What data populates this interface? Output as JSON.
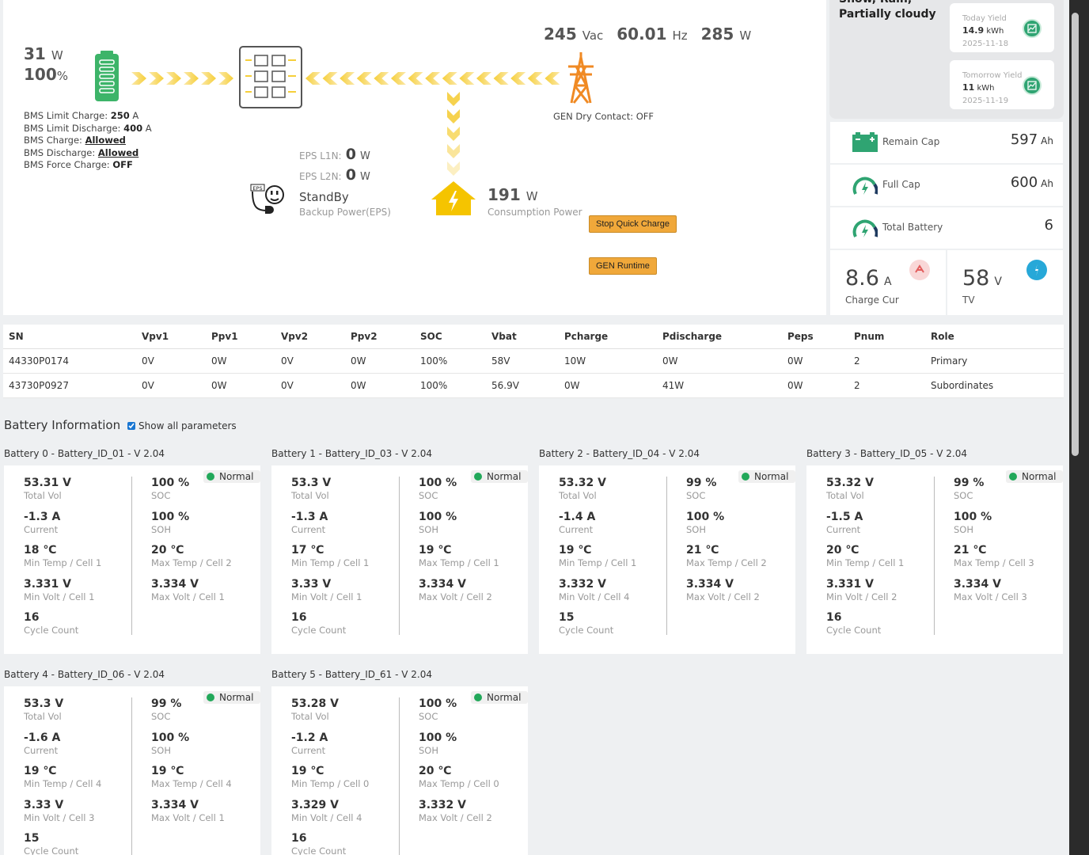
{
  "flow": {
    "battery_power": "31",
    "battery_power_unit": "W",
    "battery_soc": "100",
    "battery_soc_unit": "%",
    "bms": [
      {
        "label": "BMS Limit Charge: ",
        "value": "250",
        "suffix": " A",
        "style": "bold"
      },
      {
        "label": "BMS Limit Discharge: ",
        "value": "400",
        "suffix": " A",
        "style": "bold"
      },
      {
        "label": "BMS Charge: ",
        "value": "Allowed",
        "suffix": "",
        "style": "underline"
      },
      {
        "label": "BMS Discharge: ",
        "value": "Allowed",
        "suffix": "",
        "style": "underline"
      },
      {
        "label": "BMS Force Charge: ",
        "value": "OFF",
        "suffix": "",
        "style": "bold"
      }
    ],
    "grid_voltage": "245",
    "grid_voltage_unit": "Vac",
    "grid_freq": "60.01",
    "grid_freq_unit": "Hz",
    "grid_power": "285",
    "grid_power_unit": "W",
    "gen_dry_contact": "GEN Dry Contact: OFF",
    "eps_l1n_label": "EPS L1N:",
    "eps_l1n_value": "0",
    "eps_l1n_unit": "W",
    "eps_l2n_label": "EPS L2N:",
    "eps_l2n_value": "0",
    "eps_l2n_unit": "W",
    "eps_status": "StandBy",
    "eps_caption": "Backup Power(EPS)",
    "eps_icon_text": "EPS",
    "consumption_value": "191",
    "consumption_unit": "W",
    "consumption_caption": "Consumption Power",
    "stop_quick_charge": "Stop Quick Charge",
    "gen_runtime": "GEN Runtime"
  },
  "weather": {
    "condition": "Snow, Rain, Partially cloudy",
    "today_label": "Today Yield",
    "today_value": "14.9",
    "today_unit": "kWh",
    "today_date": "2025-11-18",
    "tomorrow_label": "Tomorrow Yield",
    "tomorrow_value": "11",
    "tomorrow_unit": "kWh",
    "tomorrow_date": "2025-11-19"
  },
  "stats": {
    "remain_cap_label": "Remain Cap",
    "remain_cap_value": "597",
    "remain_cap_unit": "Ah",
    "full_cap_label": "Full Cap",
    "full_cap_value": "600",
    "full_cap_unit": "Ah",
    "total_battery_label": "Total Battery",
    "total_battery_value": "6",
    "charge_cur_value": "8.6",
    "charge_cur_unit": "A",
    "charge_cur_label": "Charge Cur",
    "tv_value": "58",
    "tv_unit": "V",
    "tv_label": "TV",
    "colors": {
      "green": "#2fa472",
      "red": "#e35d5d",
      "blue": "#27a8d8",
      "orange": "#f08a24",
      "yellow": "#f2c40f"
    }
  },
  "table": {
    "headers": [
      "SN",
      "Vpv1",
      "Ppv1",
      "Vpv2",
      "Ppv2",
      "SOC",
      "Vbat",
      "Pcharge",
      "Pdischarge",
      "Peps",
      "Pnum",
      "Role"
    ],
    "rows": [
      [
        "44330P0174",
        "0V",
        "0W",
        "0V",
        "0W",
        "100%",
        "58V",
        "10W",
        "0W",
        "0W",
        "2",
        "Primary"
      ],
      [
        "43730P0927",
        "0V",
        "0W",
        "0V",
        "0W",
        "100%",
        "56.9V",
        "0W",
        "41W",
        "0W",
        "2",
        "Subordinates"
      ]
    ]
  },
  "battery_info": {
    "title": "Battery Information",
    "show_all_label": "Show all parameters",
    "show_all_checked": true,
    "labels": {
      "total_vol": "Total Vol",
      "current": "Current",
      "cycle": "Cycle Count",
      "soc": "SOC",
      "soh": "SOH"
    },
    "batteries": [
      {
        "title": "Battery 0 - Battery_ID_01 - V 2.04",
        "status": "Normal",
        "total_vol": "53.31 V",
        "current": "-1.3 A",
        "min_temp": "18 ℃",
        "min_temp_label": "Min Temp / Cell 1",
        "min_volt": "3.331 V",
        "min_volt_label": "Min Volt / Cell 1",
        "cycle": "16",
        "soc": "100 %",
        "soh": "100 %",
        "max_temp": "20 ℃",
        "max_temp_label": "Max Temp / Cell 2",
        "max_volt": "3.334 V",
        "max_volt_label": "Max Volt / Cell 1"
      },
      {
        "title": "Battery 1 - Battery_ID_03 - V 2.04",
        "status": "Normal",
        "total_vol": "53.3 V",
        "current": "-1.3 A",
        "min_temp": "17 ℃",
        "min_temp_label": "Min Temp / Cell 1",
        "min_volt": "3.33 V",
        "min_volt_label": "Min Volt / Cell 1",
        "cycle": "16",
        "soc": "100 %",
        "soh": "100 %",
        "max_temp": "19 ℃",
        "max_temp_label": "Max Temp / Cell 1",
        "max_volt": "3.334 V",
        "max_volt_label": "Max Volt / Cell 2"
      },
      {
        "title": "Battery 2 - Battery_ID_04 - V 2.04",
        "status": "Normal",
        "total_vol": "53.32 V",
        "current": "-1.4 A",
        "min_temp": "19 ℃",
        "min_temp_label": "Min Temp / Cell 1",
        "min_volt": "3.332 V",
        "min_volt_label": "Min Volt / Cell 4",
        "cycle": "15",
        "soc": "99 %",
        "soh": "100 %",
        "max_temp": "21 ℃",
        "max_temp_label": "Max Temp / Cell 2",
        "max_volt": "3.334 V",
        "max_volt_label": "Max Volt / Cell 2"
      },
      {
        "title": "Battery 3 - Battery_ID_05 - V 2.04",
        "status": "Normal",
        "total_vol": "53.32 V",
        "current": "-1.5 A",
        "min_temp": "20 ℃",
        "min_temp_label": "Min Temp / Cell 1",
        "min_volt": "3.331 V",
        "min_volt_label": "Min Volt / Cell 2",
        "cycle": "16",
        "soc": "99 %",
        "soh": "100 %",
        "max_temp": "21 ℃",
        "max_temp_label": "Max Temp / Cell 3",
        "max_volt": "3.334 V",
        "max_volt_label": "Max Volt / Cell 3"
      },
      {
        "title": "Battery 4 - Battery_ID_06 - V 2.04",
        "status": "Normal",
        "total_vol": "53.3 V",
        "current": "-1.6 A",
        "min_temp": "19 ℃",
        "min_temp_label": "Min Temp / Cell 4",
        "min_volt": "3.33 V",
        "min_volt_label": "Min Volt / Cell 3",
        "cycle": "15",
        "soc": "99 %",
        "soh": "100 %",
        "max_temp": "19 ℃",
        "max_temp_label": "Max Temp / Cell 4",
        "max_volt": "3.334 V",
        "max_volt_label": "Max Volt / Cell 1"
      },
      {
        "title": "Battery 5 - Battery_ID_61 - V 2.04",
        "status": "Normal",
        "total_vol": "53.28 V",
        "current": "-1.2 A",
        "min_temp": "19 ℃",
        "min_temp_label": "Min Temp / Cell 0",
        "min_volt": "3.329 V",
        "min_volt_label": "Min Volt / Cell 4",
        "cycle": "16",
        "soc": "100 %",
        "soh": "100 %",
        "max_temp": "20 ℃",
        "max_temp_label": "Max Temp / Cell 0",
        "max_volt": "3.332 V",
        "max_volt_label": "Max Volt / Cell 2"
      }
    ]
  }
}
